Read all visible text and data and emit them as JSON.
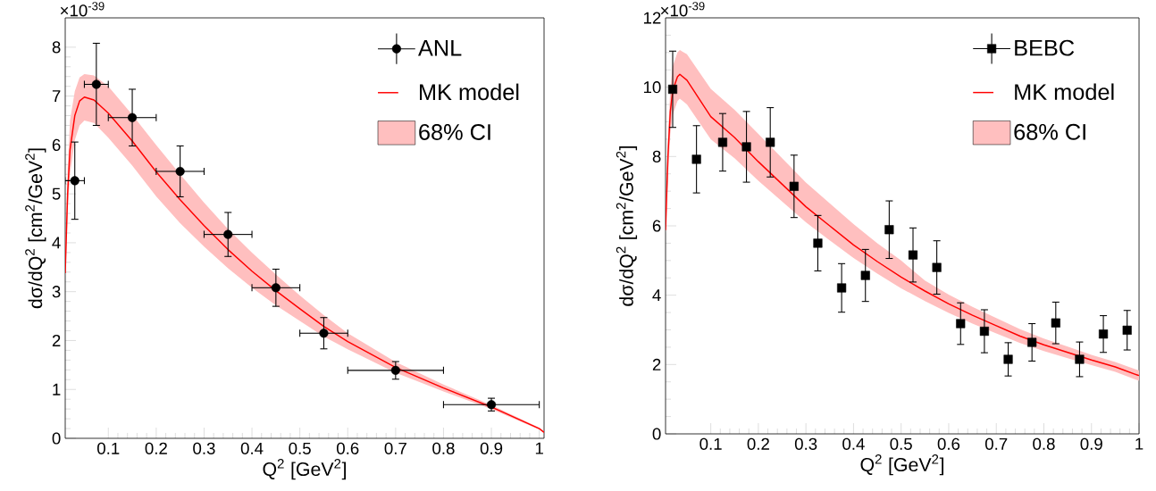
{
  "chart_data": [
    {
      "type": "scatter",
      "xlabel": "Q$^{2}$ [GeV$^{2}$]",
      "ylabel": "dσ/dQ$^{2}$ [cm$^{2}$/GeV$^{2}$]",
      "annotations": [
        "×10$^{-39}$",
        "68% CI"
      ],
      "xlim": [
        0.01,
        1.01
      ],
      "ylim": [
        0,
        8.6
      ],
      "xticks": [
        0.1,
        0.2,
        0.3,
        0.4,
        0.5,
        0.6,
        0.7,
        0.8,
        0.9,
        1
      ],
      "yticks": [
        0,
        1,
        2,
        3,
        4,
        5,
        6,
        7,
        8
      ],
      "legend": "top right",
      "series": [
        {
          "name": "ANL",
          "color": "#000000",
          "marker": "circle",
          "x": [
            0.03,
            0.075,
            0.15,
            0.25,
            0.35,
            0.45,
            0.55,
            0.7,
            0.9
          ],
          "values": [
            5.27,
            7.24,
            6.56,
            5.46,
            4.17,
            3.08,
            2.15,
            1.39,
            0.69
          ],
          "errors": [
            0.79,
            0.84,
            0.58,
            0.52,
            0.45,
            0.38,
            0.32,
            0.18,
            0.13
          ],
          "xerrors": [
            0.02,
            0.025,
            0.05,
            0.05,
            0.05,
            0.05,
            0.05,
            0.1,
            0.1
          ]
        },
        {
          "type": "line",
          "name": "MK model",
          "color": "#ff0000",
          "line_style": "solid",
          "marker": "none",
          "x": [
            0.01,
            0.015,
            0.02,
            0.03,
            0.04,
            0.05,
            0.07,
            0.1,
            0.15,
            0.2,
            0.25,
            0.3,
            0.35,
            0.4,
            0.45,
            0.5,
            0.55,
            0.6,
            0.7,
            0.8,
            0.9,
            1.0,
            1.01
          ],
          "values": [
            3.38,
            5.0,
            5.9,
            6.6,
            6.9,
            6.98,
            6.92,
            6.65,
            6.08,
            5.45,
            4.88,
            4.35,
            3.86,
            3.42,
            3.02,
            2.65,
            2.29,
            1.98,
            1.45,
            1.03,
            0.64,
            0.2,
            0.12
          ],
          "lower": [
            3.3,
            4.6,
            5.4,
            6.1,
            6.4,
            6.5,
            6.45,
            6.15,
            5.58,
            4.95,
            4.4,
            3.92,
            3.48,
            3.08,
            2.72,
            2.4,
            2.08,
            1.82,
            1.34,
            0.96,
            0.6,
            0.18,
            0.11
          ],
          "upper": [
            3.45,
            5.5,
            6.5,
            7.1,
            7.38,
            7.45,
            7.42,
            7.2,
            6.62,
            6.0,
            5.4,
            4.82,
            4.28,
            3.8,
            3.35,
            2.92,
            2.52,
            2.15,
            1.56,
            1.1,
            0.68,
            0.22,
            0.13
          ]
        }
      ]
    },
    {
      "type": "scatter",
      "xlabel": "Q$^{2}$ [GeV$^{2}$]",
      "ylabel": "dσ/dQ$^{2}$ [cm$^{2}$/GeV$^{2}$]",
      "annotations": [
        "×10$^{-39}$",
        "68% CI"
      ],
      "xlim": [
        0.005,
        1
      ],
      "ylim": [
        0,
        12
      ],
      "xticks": [
        0.1,
        0.2,
        0.3,
        0.4,
        0.5,
        0.6,
        0.7,
        0.8,
        0.9,
        1
      ],
      "yticks": [
        0,
        2,
        4,
        6,
        8,
        10,
        12
      ],
      "legend": "top right",
      "series": [
        {
          "name": "BEBC",
          "color": "#000000",
          "marker": "square",
          "x": [
            0.02,
            0.07,
            0.125,
            0.175,
            0.225,
            0.275,
            0.325,
            0.375,
            0.425,
            0.475,
            0.525,
            0.575,
            0.625,
            0.675,
            0.725,
            0.775,
            0.825,
            0.875,
            0.925,
            0.975
          ],
          "values": [
            9.94,
            7.92,
            8.41,
            8.28,
            8.41,
            7.14,
            5.5,
            4.21,
            4.57,
            5.89,
            5.16,
            4.8,
            3.18,
            2.96,
            2.15,
            2.64,
            3.2,
            2.15,
            2.88,
            2.99
          ],
          "errors": [
            1.1,
            0.97,
            0.83,
            1.02,
            1.0,
            0.9,
            0.8,
            0.7,
            0.75,
            0.83,
            0.78,
            0.77,
            0.6,
            0.62,
            0.48,
            0.54,
            0.6,
            0.5,
            0.53,
            0.57
          ]
        },
        {
          "type": "line",
          "name": "MK model",
          "color": "#ff0000",
          "line_style": "solid",
          "marker": "none",
          "x": [
            0.005,
            0.01,
            0.015,
            0.02,
            0.03,
            0.035,
            0.05,
            0.1,
            0.15,
            0.2,
            0.25,
            0.3,
            0.35,
            0.4,
            0.45,
            0.5,
            0.55,
            0.6,
            0.65,
            0.7,
            0.75,
            0.8,
            0.85,
            0.9,
            0.95,
            1.0
          ],
          "values": [
            5.88,
            8.0,
            9.3,
            9.9,
            10.3,
            10.37,
            10.2,
            9.15,
            8.55,
            7.85,
            7.2,
            6.55,
            6.0,
            5.45,
            4.97,
            4.52,
            4.12,
            3.75,
            3.42,
            3.12,
            2.82,
            2.57,
            2.35,
            2.13,
            1.93,
            1.68
          ],
          "lower": [
            5.76,
            7.4,
            8.65,
            9.2,
            9.6,
            9.67,
            9.5,
            8.5,
            7.95,
            7.3,
            6.7,
            6.1,
            5.58,
            5.07,
            4.62,
            4.2,
            3.83,
            3.49,
            3.18,
            2.9,
            2.62,
            2.39,
            2.18,
            1.98,
            1.79,
            1.53
          ],
          "upper": [
            6.0,
            8.6,
            9.95,
            10.6,
            11.0,
            11.07,
            10.95,
            9.95,
            9.35,
            8.65,
            7.95,
            7.25,
            6.65,
            6.05,
            5.5,
            5.0,
            4.42,
            4.02,
            3.66,
            3.34,
            3.02,
            2.75,
            2.52,
            2.28,
            2.07,
            1.83
          ]
        }
      ]
    }
  ]
}
